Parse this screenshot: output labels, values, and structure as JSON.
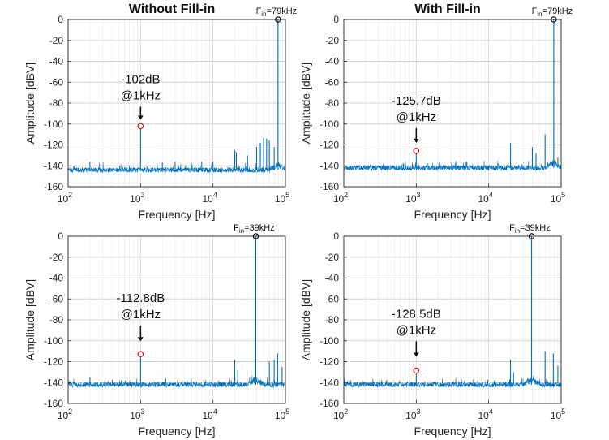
{
  "figure": {
    "background": "#ffffff",
    "line_color": "#0072BD",
    "marker_signal_color": "#000000",
    "marker_spur_color": "#E00000"
  },
  "chart_data": [
    {
      "type": "line",
      "title": "Without Fill-in",
      "fin_label": {
        "main": "F",
        "sub": "in",
        "rest": "=79kHz"
      },
      "xlabel": "Frequency [Hz]",
      "ylabel": "Amplitude [dBV]",
      "xscale": "log",
      "xlim": [
        100,
        100000
      ],
      "ylim": [
        -160,
        0
      ],
      "x_ticks": [
        {
          "base": "10",
          "exp": "2"
        },
        {
          "base": "10",
          "exp": "3"
        },
        {
          "base": "10",
          "exp": "4"
        },
        {
          "base": "10",
          "exp": "5"
        }
      ],
      "y_ticks": [
        "0",
        "-20",
        "-40",
        "-60",
        "-80",
        "-100",
        "-120",
        "-140",
        "-160"
      ],
      "grid": true,
      "noise_floor": -144,
      "peaks": [
        {
          "x": 79000,
          "y": 0
        },
        {
          "x": 1000,
          "y": -102
        },
        {
          "x": 200,
          "y": -136
        },
        {
          "x": 2000,
          "y": -137
        },
        {
          "x": 3000,
          "y": -136
        },
        {
          "x": 5000,
          "y": -137
        },
        {
          "x": 7000,
          "y": -136
        },
        {
          "x": 10000,
          "y": -136
        },
        {
          "x": 20000,
          "y": -125
        },
        {
          "x": 21000,
          "y": -127
        },
        {
          "x": 30000,
          "y": -130
        },
        {
          "x": 40000,
          "y": -122
        },
        {
          "x": 45000,
          "y": -118
        },
        {
          "x": 50000,
          "y": -113
        },
        {
          "x": 55000,
          "y": -114
        },
        {
          "x": 60000,
          "y": -116
        },
        {
          "x": 70000,
          "y": -122
        }
      ],
      "signal_marker": {
        "x": 79000,
        "y": 0
      },
      "spur_marker": {
        "x": 1000,
        "y": -102
      },
      "annotation": {
        "line1": "-102dB",
        "line2": "@1kHz"
      }
    },
    {
      "type": "line",
      "title": "With Fill-in",
      "fin_label": {
        "main": "F",
        "sub": "in",
        "rest": "=79kHz"
      },
      "xlabel": "Frequency [Hz]",
      "ylabel": "Amplitude [dBV]",
      "xscale": "log",
      "xlim": [
        100,
        100000
      ],
      "ylim": [
        -160,
        0
      ],
      "x_ticks": [
        {
          "base": "10",
          "exp": "2"
        },
        {
          "base": "10",
          "exp": "3"
        },
        {
          "base": "10",
          "exp": "4"
        },
        {
          "base": "10",
          "exp": "5"
        }
      ],
      "y_ticks": [
        "0",
        "-20",
        "-40",
        "-60",
        "-80",
        "-100",
        "-120",
        "-140",
        "-160"
      ],
      "grid": true,
      "noise_floor": -142,
      "peaks": [
        {
          "x": 79000,
          "y": 0
        },
        {
          "x": 1000,
          "y": -125.7
        },
        {
          "x": 5000,
          "y": -137
        },
        {
          "x": 20000,
          "y": -118
        },
        {
          "x": 40000,
          "y": -122
        },
        {
          "x": 45000,
          "y": -128
        },
        {
          "x": 60000,
          "y": -110
        },
        {
          "x": 90000,
          "y": -132
        }
      ],
      "signal_marker": {
        "x": 79000,
        "y": 0
      },
      "spur_marker": {
        "x": 1000,
        "y": -125.7
      },
      "annotation": {
        "line1": "-125.7dB",
        "line2": "@1kHz"
      }
    },
    {
      "type": "line",
      "title": "",
      "fin_label": {
        "main": "F",
        "sub": "in",
        "rest": "=39kHz"
      },
      "xlabel": "Frequency [Hz]",
      "ylabel": "Amplitude [dBV]",
      "xscale": "log",
      "xlim": [
        100,
        100000
      ],
      "ylim": [
        -160,
        0
      ],
      "x_ticks": [
        {
          "base": "10",
          "exp": "2"
        },
        {
          "base": "10",
          "exp": "3"
        },
        {
          "base": "10",
          "exp": "4"
        },
        {
          "base": "10",
          "exp": "5"
        }
      ],
      "y_ticks": [
        "0",
        "-20",
        "-40",
        "-60",
        "-80",
        "-100",
        "-120",
        "-140",
        "-160"
      ],
      "grid": true,
      "noise_floor": -142,
      "peaks": [
        {
          "x": 39000,
          "y": 0
        },
        {
          "x": 1000,
          "y": -112.8
        },
        {
          "x": 200,
          "y": -135
        },
        {
          "x": 5000,
          "y": -136
        },
        {
          "x": 20000,
          "y": -118
        },
        {
          "x": 22000,
          "y": -128
        },
        {
          "x": 60000,
          "y": -120
        },
        {
          "x": 70000,
          "y": -118
        },
        {
          "x": 78000,
          "y": -112
        },
        {
          "x": 90000,
          "y": -125
        }
      ],
      "signal_marker": {
        "x": 39000,
        "y": 0
      },
      "spur_marker": {
        "x": 1000,
        "y": -112.8
      },
      "annotation": {
        "line1": "-112.8dB",
        "line2": "@1kHz"
      }
    },
    {
      "type": "line",
      "title": "",
      "fin_label": {
        "main": "F",
        "sub": "in",
        "rest": "=39kHz"
      },
      "xlabel": "Frequency [Hz]",
      "ylabel": "Amplitude [dBV]",
      "xscale": "log",
      "xlim": [
        100,
        100000
      ],
      "ylim": [
        -160,
        0
      ],
      "x_ticks": [
        {
          "base": "10",
          "exp": "2"
        },
        {
          "base": "10",
          "exp": "3"
        },
        {
          "base": "10",
          "exp": "4"
        },
        {
          "base": "10",
          "exp": "5"
        }
      ],
      "y_ticks": [
        "0",
        "-20",
        "-40",
        "-60",
        "-80",
        "-100",
        "-120",
        "-140",
        "-160"
      ],
      "grid": true,
      "noise_floor": -142,
      "peaks": [
        {
          "x": 39000,
          "y": 0
        },
        {
          "x": 1000,
          "y": -128.5
        },
        {
          "x": 20000,
          "y": -118
        },
        {
          "x": 22000,
          "y": -130
        },
        {
          "x": 60000,
          "y": -110
        },
        {
          "x": 78000,
          "y": -112
        },
        {
          "x": 90000,
          "y": -124
        }
      ],
      "signal_marker": {
        "x": 39000,
        "y": 0
      },
      "spur_marker": {
        "x": 1000,
        "y": -128.5
      },
      "annotation": {
        "line1": "-128.5dB",
        "line2": "@1kHz"
      }
    }
  ]
}
